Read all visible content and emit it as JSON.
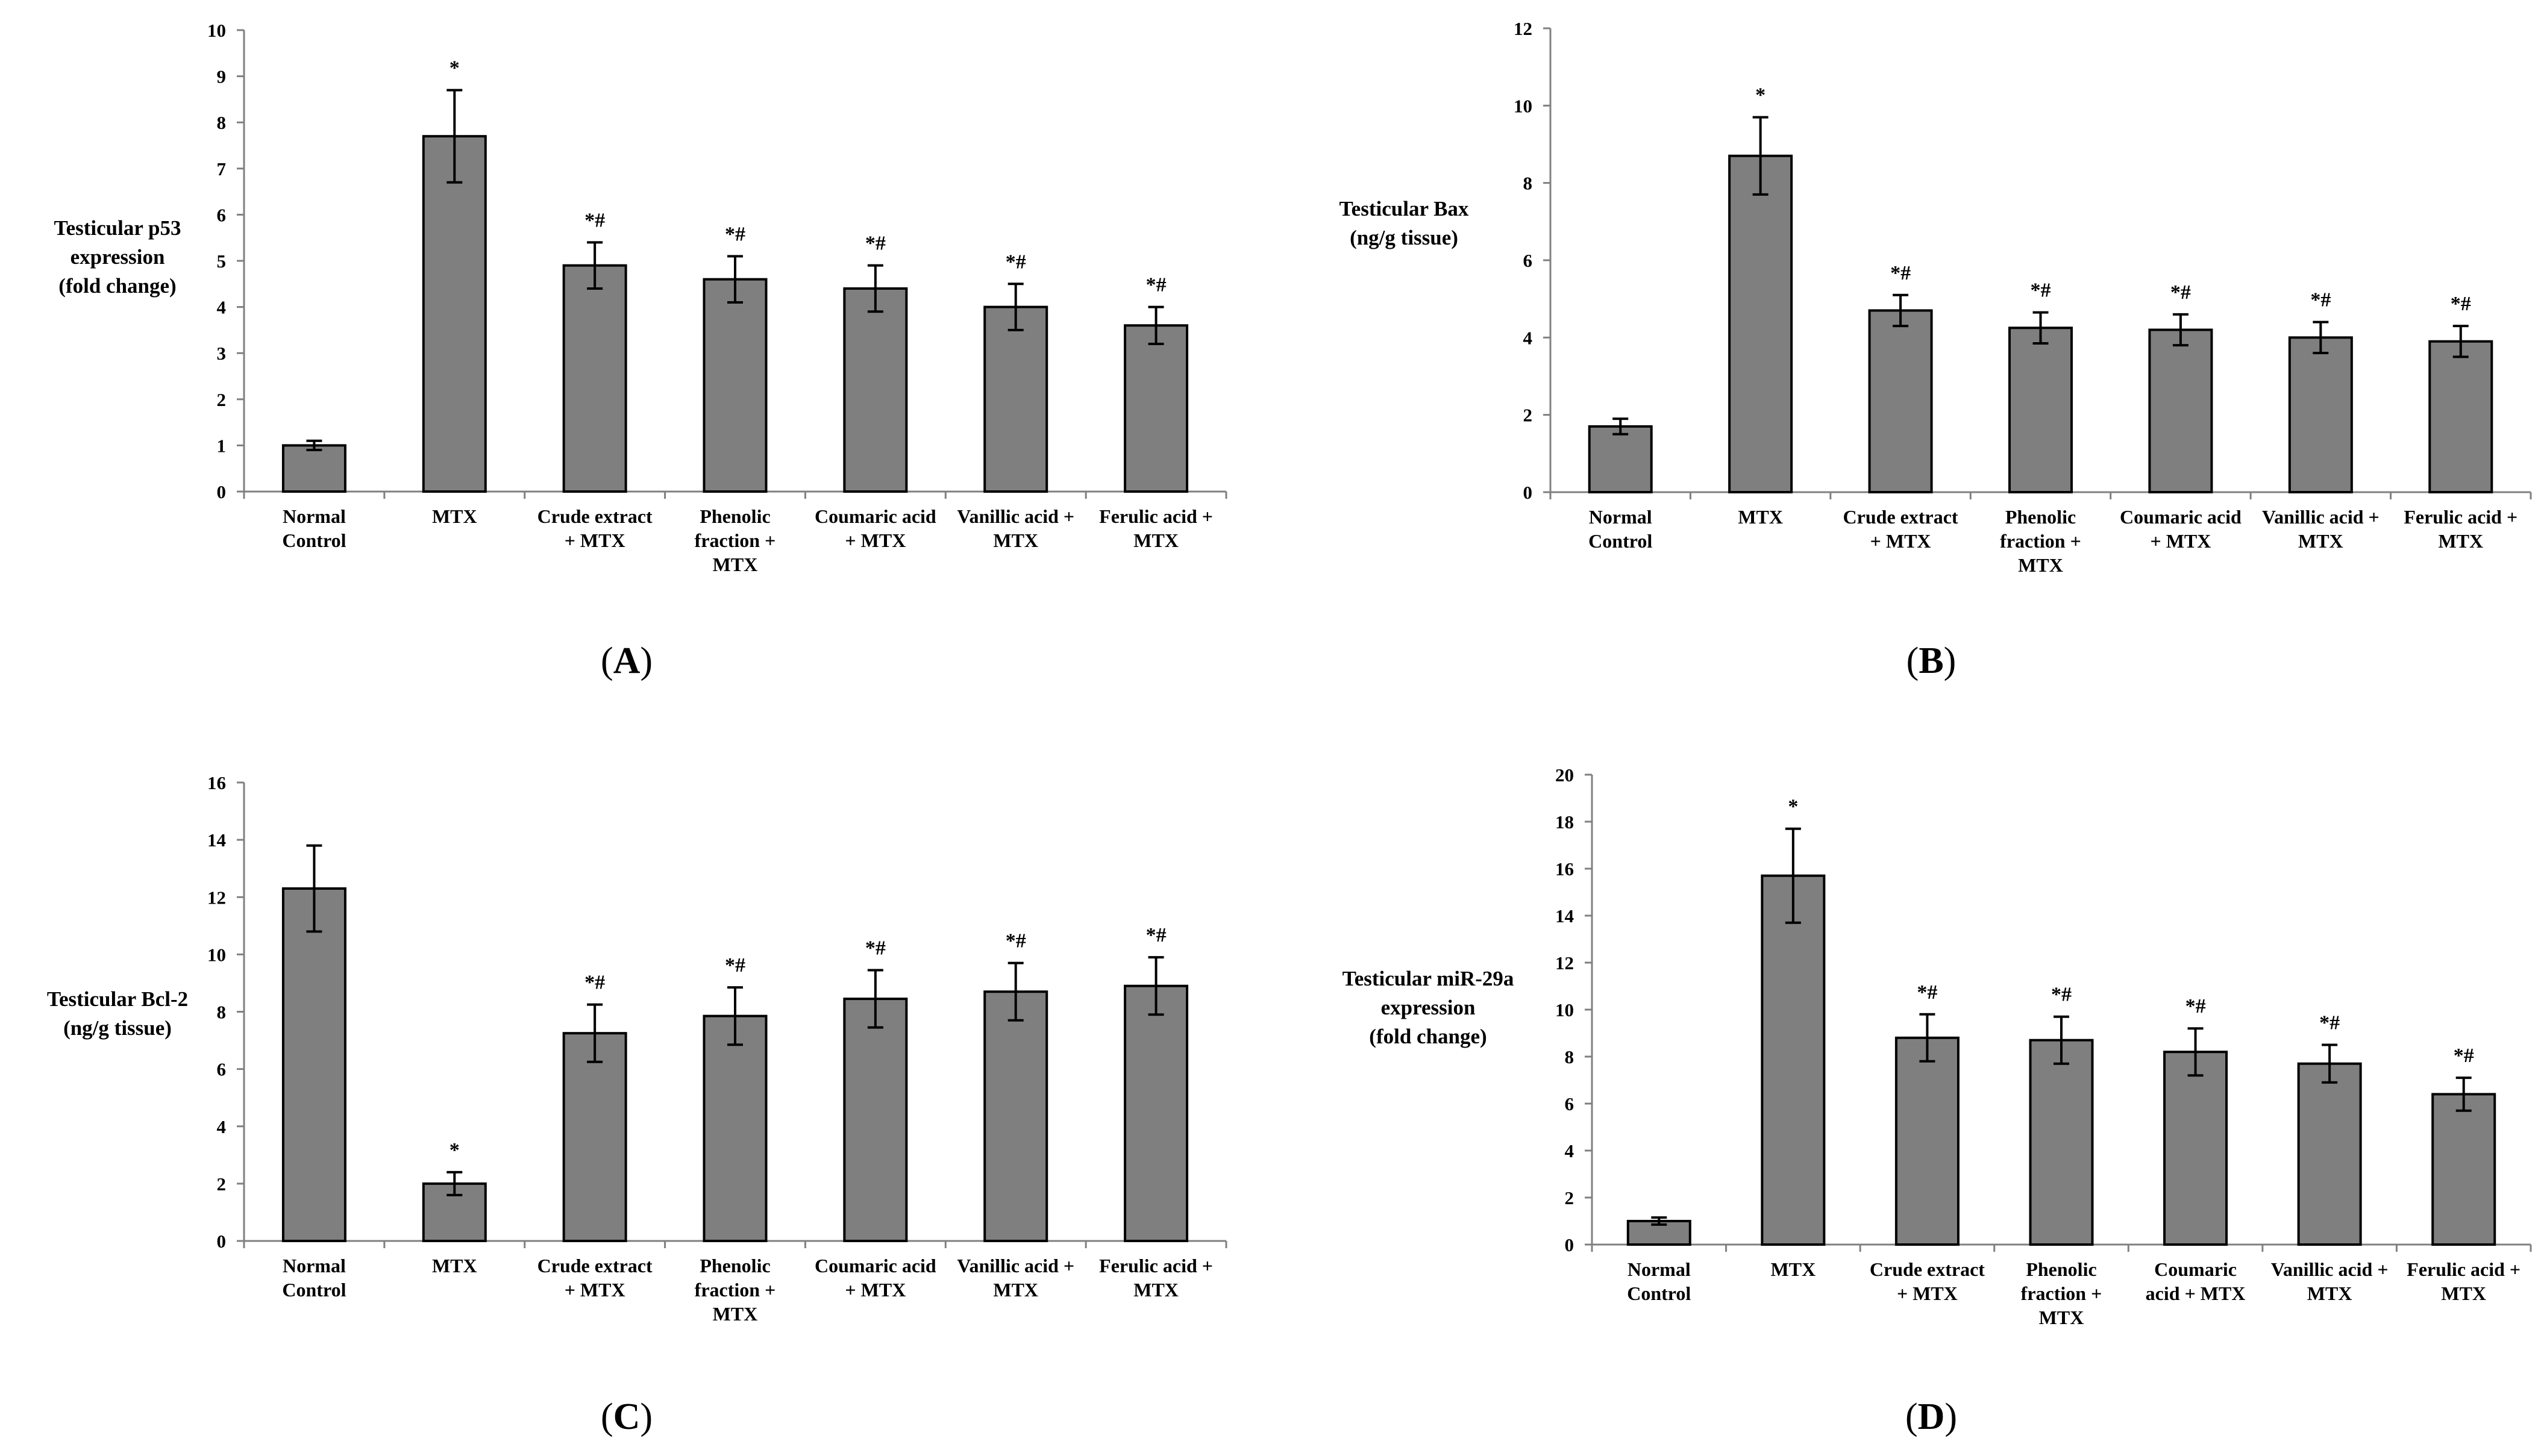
{
  "colors": {
    "bar_fill": "#7f7f7f",
    "bar_stroke": "#000000",
    "axis": "#808080",
    "text": "#000000"
  },
  "chart_data": [
    {
      "panel": "A",
      "type": "bar",
      "ylabel": [
        "Testicular p53",
        "expression",
        "(fold change)"
      ],
      "ylim": [
        0,
        10
      ],
      "yticks": [
        0,
        1,
        2,
        3,
        4,
        5,
        6,
        7,
        8,
        9,
        10
      ],
      "categories": [
        [
          "Normal",
          "Control"
        ],
        [
          "MTX"
        ],
        [
          "Crude extract",
          "+ MTX"
        ],
        [
          "Phenolic",
          "fraction +",
          "MTX"
        ],
        [
          "Coumaric acid",
          "+ MTX"
        ],
        [
          "Vanillic acid +",
          "MTX"
        ],
        [
          "Ferulic acid +",
          "MTX"
        ]
      ],
      "values": [
        1.0,
        7.7,
        4.9,
        4.6,
        4.4,
        4.0,
        3.6
      ],
      "errors": [
        0.1,
        1.0,
        0.5,
        0.5,
        0.5,
        0.5,
        0.4
      ],
      "annotations": [
        "",
        "*",
        "*#",
        "*#",
        "*#",
        "*#",
        "*#"
      ]
    },
    {
      "panel": "B",
      "type": "bar",
      "ylabel": [
        "Testicular Bax",
        "(ng/g tissue)"
      ],
      "ylim": [
        0,
        12
      ],
      "yticks": [
        0,
        2,
        4,
        6,
        8,
        10,
        12
      ],
      "categories": [
        [
          "Normal",
          "Control"
        ],
        [
          "MTX"
        ],
        [
          "Crude extract",
          "+ MTX"
        ],
        [
          "Phenolic",
          "fraction +",
          "MTX"
        ],
        [
          "Coumaric acid",
          "+ MTX"
        ],
        [
          "Vanillic acid +",
          "MTX"
        ],
        [
          "Ferulic acid +",
          "MTX"
        ]
      ],
      "values": [
        1.7,
        8.7,
        4.7,
        4.25,
        4.2,
        4.0,
        3.9
      ],
      "errors": [
        0.2,
        1.0,
        0.4,
        0.4,
        0.4,
        0.4,
        0.4
      ],
      "annotations": [
        "",
        "*",
        "*#",
        "*#",
        "*#",
        "*#",
        "*#"
      ]
    },
    {
      "panel": "C",
      "type": "bar",
      "ylabel": [
        "Testicular Bcl-2",
        "(ng/g tissue)"
      ],
      "ylim": [
        0,
        16
      ],
      "yticks": [
        0,
        2,
        4,
        6,
        8,
        10,
        12,
        14,
        16
      ],
      "categories": [
        [
          "Normal",
          "Control"
        ],
        [
          "MTX"
        ],
        [
          "Crude extract",
          "+ MTX"
        ],
        [
          "Phenolic",
          "fraction +",
          "MTX"
        ],
        [
          "Coumaric acid",
          "+ MTX"
        ],
        [
          "Vanillic acid +",
          "MTX"
        ],
        [
          "Ferulic acid +",
          "MTX"
        ]
      ],
      "values": [
        12.3,
        2.0,
        7.25,
        7.85,
        8.45,
        8.7,
        8.9
      ],
      "errors": [
        1.5,
        0.4,
        1.0,
        1.0,
        1.0,
        1.0,
        1.0
      ],
      "annotations": [
        "",
        "*",
        "*#",
        "*#",
        "*#",
        "*#",
        "*#"
      ]
    },
    {
      "panel": "D",
      "type": "bar",
      "ylabel": [
        "Testicular miR-29a",
        "expression",
        "(fold change)"
      ],
      "ylim": [
        0,
        20
      ],
      "yticks": [
        0,
        2,
        4,
        6,
        8,
        10,
        12,
        14,
        16,
        18,
        20
      ],
      "categories": [
        [
          "Normal",
          "Control"
        ],
        [
          "MTX"
        ],
        [
          "Crude extract",
          "+ MTX"
        ],
        [
          "Phenolic",
          "fraction +",
          "MTX"
        ],
        [
          "Coumaric",
          "acid + MTX"
        ],
        [
          "Vanillic acid +",
          "MTX"
        ],
        [
          "Ferulic acid +",
          "MTX"
        ]
      ],
      "values": [
        1.0,
        15.7,
        8.8,
        8.7,
        8.2,
        7.7,
        6.4
      ],
      "errors": [
        0.15,
        2.0,
        1.0,
        1.0,
        1.0,
        0.8,
        0.7
      ],
      "annotations": [
        "",
        "*",
        "*#",
        "*#",
        "*#",
        "*#",
        "*#"
      ]
    }
  ]
}
